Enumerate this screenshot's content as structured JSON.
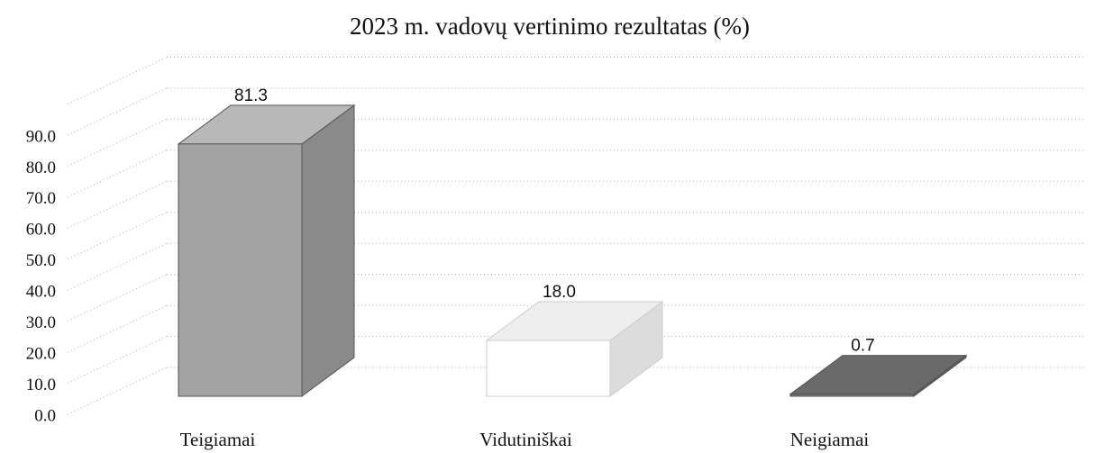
{
  "chart_data": {
    "type": "bar3d",
    "title": "2023 m. vadovų vertinimo rezultatas (%)",
    "categories": [
      "Teigiamai",
      "Vidutiniškai",
      "Neigiamai"
    ],
    "values": [
      81.3,
      18.0,
      0.7
    ],
    "value_labels": [
      "81.3",
      "18.0",
      "0.7"
    ],
    "colors": [
      "#a3a3a3",
      "#ffffff",
      "#737373"
    ],
    "ylim": [
      0,
      100
    ],
    "yticks": [
      {
        "value": 0,
        "label": "0.0"
      },
      {
        "value": 10,
        "label": "10.0"
      },
      {
        "value": 20,
        "label": "20.0"
      },
      {
        "value": 30,
        "label": "30.0"
      },
      {
        "value": 40,
        "label": "40.0"
      },
      {
        "value": 50,
        "label": "50.0"
      },
      {
        "value": 60,
        "label": "60.0"
      },
      {
        "value": 70,
        "label": "70.0"
      },
      {
        "value": 80,
        "label": "80.0"
      },
      {
        "value": 90,
        "label": "90.0"
      }
    ],
    "grid": true
  }
}
